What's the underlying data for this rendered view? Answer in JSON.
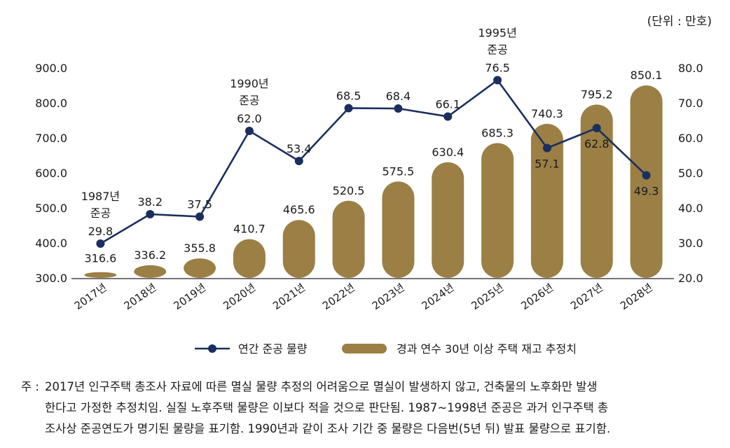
{
  "unit_label": "(단위 : 만호)",
  "chart_data": {
    "type": "bar+line",
    "categories": [
      "2017년",
      "2018년",
      "2019년",
      "2020년",
      "2021년",
      "2022년",
      "2023년",
      "2024년",
      "2025년",
      "2026년",
      "2027년",
      "2028년"
    ],
    "bar_series": {
      "name": "경과 연수 30년 이상 주택 재고 추정치",
      "values": [
        316.6,
        336.2,
        355.8,
        410.7,
        465.6,
        520.5,
        575.5,
        630.4,
        685.3,
        740.3,
        795.2,
        850.1
      ],
      "labels": [
        "316.6",
        "336.2",
        "355.8",
        "410.7",
        "465.6",
        "520.5",
        "575.5",
        "630.4",
        "685.3",
        "740.3",
        "795.2",
        "850.1"
      ],
      "color": "#9B7F45"
    },
    "line_series": {
      "name": "연간 준공 물량",
      "values": [
        29.8,
        38.2,
        37.5,
        62.0,
        53.4,
        68.5,
        68.4,
        66.1,
        76.5,
        57.1,
        62.8,
        49.3
      ],
      "labels": [
        "29.8",
        "38.2",
        "37.5",
        "62.0",
        "53.4",
        "68.5",
        "68.4",
        "66.1",
        "76.5",
        "57.1",
        "62.8",
        "49.3"
      ],
      "color": "#1B2F5E"
    },
    "left_axis": {
      "min": 300,
      "max": 900,
      "ticks": [
        "300.0",
        "400.0",
        "500.0",
        "600.0",
        "700.0",
        "800.0",
        "900.0"
      ]
    },
    "right_axis": {
      "min": 20,
      "max": 80,
      "ticks": [
        "20.0",
        "30.0",
        "40.0",
        "50.0",
        "60.0",
        "70.0",
        "80.0"
      ]
    },
    "annotations": [
      {
        "index": 0,
        "year_text": "1987년",
        "suffix": "준공"
      },
      {
        "index": 3,
        "year_text": "1990년",
        "suffix": "준공"
      },
      {
        "index": 8,
        "year_text": "1995년",
        "suffix": "준공"
      }
    ],
    "legend_placement": "bottom"
  },
  "note": {
    "prefix": "주 :",
    "lines": [
      "2017년 인구주택 총조사 자료에 따른 멸실 물량 추정의 어려움으로 멸실이 발생하지 않고, 건축물의 노후화만 발생",
      "한다고 가정한 추정치임. 실질 노후주택 물량은 이보다 적을 것으로 판단됨. 1987~1998년 준공은 과거 인구주택 총",
      "조사상 준공연도가 명기된 물량을 표기함. 1990년과 같이 조사 기간 중 물량은 다음번(5년 뒤) 발표 물량으로 표기함."
    ]
  }
}
